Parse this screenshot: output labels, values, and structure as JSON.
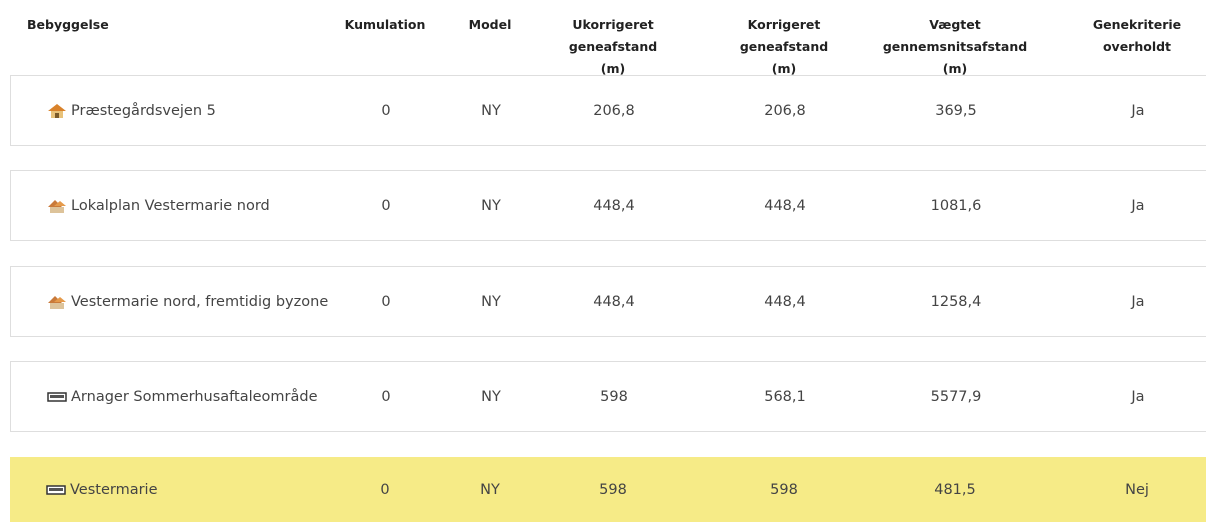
{
  "table": {
    "headers": [
      "Bebyggelse",
      "Kumulation",
      "Model",
      "Ukorrigeret geneafstand (m)",
      "Korrigeret geneafstand (m)",
      "Vægtet gennemsnitsafstand (m)",
      "Genekriterie overholdt"
    ],
    "rows": [
      [
        "Præstegårdsvejen 5",
        "0",
        "NY",
        "206,8",
        "206,8",
        "369,5",
        "Ja"
      ],
      [
        "Lokalplan Vestermarie nord",
        "0",
        "NY",
        "448,4",
        "448,4",
        "1081,6",
        "Ja"
      ],
      [
        "Vestermarie nord, fremtidig byzone",
        "0",
        "NY",
        "448,4",
        "448,4",
        "1258,4",
        "Ja"
      ],
      [
        "Arnager Sommerhusaftaleområde",
        "0",
        "NY",
        "598",
        "568,1",
        "5577,9",
        "Ja"
      ],
      [
        "Vestermarie",
        "0",
        "NY",
        "598",
        "598",
        "481,5",
        "Nej"
      ]
    ]
  }
}
